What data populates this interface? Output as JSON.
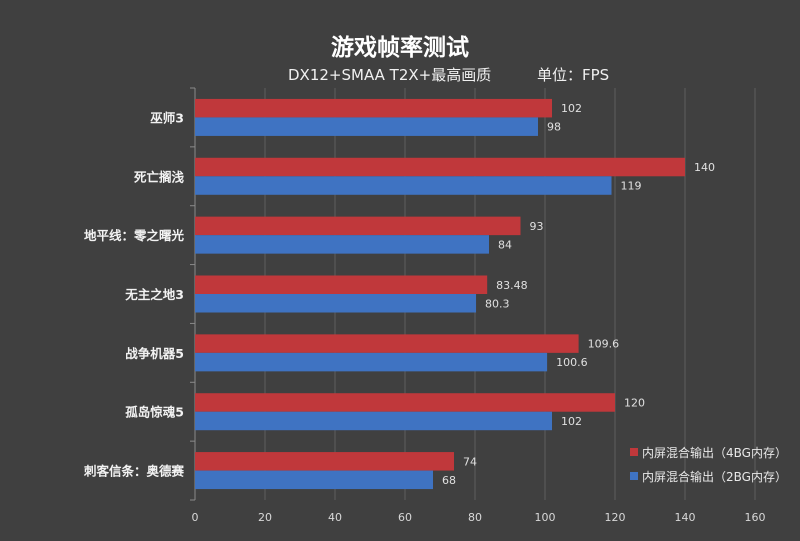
{
  "chart_data": {
    "type": "bar",
    "orientation": "horizontal",
    "title": "游戏帧率测试",
    "subtitle": "DX12+SMAA T2X+最高画质",
    "unit_label": "单位：FPS",
    "categories": [
      "巫师3",
      "死亡搁浅",
      "地平线：零之曙光",
      "无主之地3",
      "战争机器5",
      "孤岛惊魂5",
      "刺客信条：奥德赛"
    ],
    "series": [
      {
        "name": "内屏混合输出（4BG内存）",
        "color": "#c0383b",
        "values": [
          102,
          140,
          93,
          83.48,
          109.6,
          120,
          74
        ]
      },
      {
        "name": "内屏混合输出（2BG内存）",
        "color": "#3f73c2",
        "values": [
          98,
          119,
          84,
          80.3,
          100.6,
          102,
          68
        ]
      }
    ],
    "value_labels": [
      [
        "102",
        "140",
        "93",
        "83.48",
        "109.6",
        "120",
        "74"
      ],
      [
        "98",
        "119",
        "84",
        "80.3",
        "100.6",
        "102",
        "68"
      ]
    ],
    "xlim": [
      0,
      160
    ],
    "x_ticks": [
      "0",
      "20",
      "40",
      "60",
      "80",
      "100",
      "120",
      "140",
      "160"
    ],
    "grid": true,
    "legend_position": "bottom-right"
  }
}
